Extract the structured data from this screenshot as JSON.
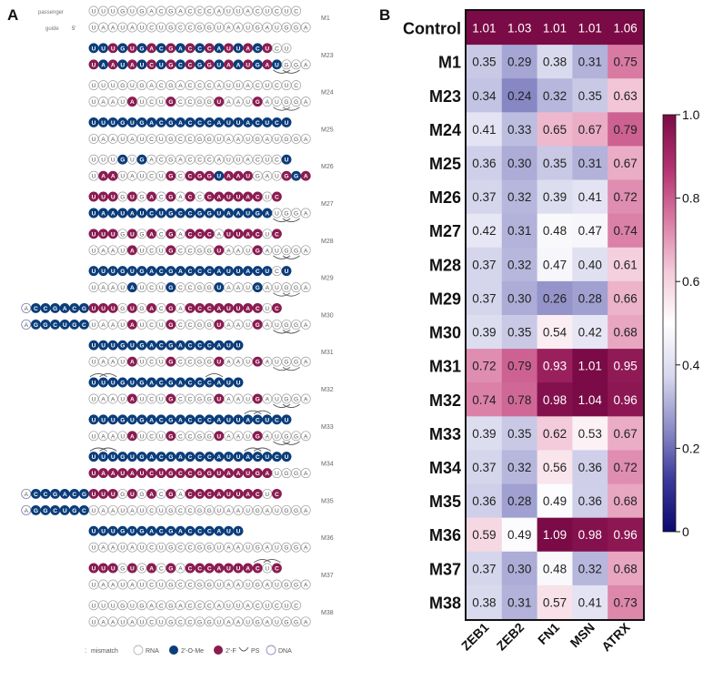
{
  "panel_a": {
    "label": "A",
    "passenger_label": "passenger",
    "guide_label": "guide",
    "five_prime": "5'",
    "colors": {
      "ome": "#0b3d7a",
      "fluoro": "#8a1c51",
      "rna_stroke": "#a0a0a0",
      "rna_text": "#555555",
      "ps": "#555555"
    },
    "passenger_seq": "UUUGUGACGACCCAUUACUCUC",
    "guide_seq": "UAAUAUCUGCCGGUAAUGAUGGA",
    "legend": {
      "mismatch": "mismatch",
      "rna": "RNA",
      "ome": "2'-O-Me",
      "fluoro": "2'-F",
      "ps": "PS",
      "dna": "DNA"
    },
    "constructs": [
      {
        "label": "M1",
        "p": "RRRRRRRRRRRRRRRRRRRRRR",
        "g": "RRRRRRRRRRRRRRRRRRRRRRR",
        "ps_p": [],
        "ps_g": []
      },
      {
        "label": "M23",
        "p": "OOFOFOFOFOFOFOFOFOFRR",
        "g": "FOFOFOFOFOFOFOFOFOFORRR",
        "ps_p": [],
        "ps_g": [
          19,
          20
        ]
      },
      {
        "label": "M24",
        "p": "RRRRRRRRRRRRRRRRRRRRRR",
        "g": "RRRRFRRRFRRRRFRRRFRRRRR",
        "ps_p": [],
        "ps_g": [
          19,
          20
        ]
      },
      {
        "label": "M25",
        "p": "OOOOOOOOOOOOOOOOOOOOO",
        "g": "RRRRRRRRRRRRRRRRRRRRRRR",
        "ps_p": [],
        "ps_g": []
      },
      {
        "label": "M26",
        "p": "RRRORORRRRRRRRRRRRRRO",
        "g": "RFFRRRRRFRFFFOFFFRRRFOF",
        "ps_p": [],
        "ps_g": []
      },
      {
        "label": "M27",
        "p": "FFFRFRFRFRFRFFFFFFRF",
        "g": "OOOOOOOOOOOOOOOOOOORRRR",
        "ps_p": [],
        "ps_g": [
          19,
          20
        ]
      },
      {
        "label": "M28",
        "p": "FFFRFRFRFRFFFRFFFFRF",
        "g": "RRRRFRRRFRRRRFRRRFRRRRR",
        "ps_p": [],
        "ps_g": [
          19,
          20
        ]
      },
      {
        "label": "M29",
        "p": "OOOOOOOOOOOOOOOOOOORO",
        "g": "RRRRORRRORRRRORRRORRRRR",
        "ps_p": [],
        "ps_g": [
          19,
          20
        ]
      },
      {
        "label": "M30",
        "p": "FFFRFRFRFRFFFFFFFFRF",
        "g": "RRRRFRRRFRRRRFRRRFRRRRR",
        "ps_p": [],
        "ps_g": [
          19,
          20
        ],
        "ext_p": "ACCGACG",
        "ext_g": "AGGCUGC"
      },
      {
        "label": "M31",
        "p": "OOOOOOOOOOOOOOOO",
        "g": "RRRRFRRRFRRRRFRRRFRRRRR",
        "ps_p": [],
        "ps_g": [
          19,
          20
        ]
      },
      {
        "label": "M32",
        "p": "OOOOOOOOOOOOOOOO",
        "g": "RRRRFRRRFRRRRFRRRFRRRRR",
        "ps_p": [
          0,
          1,
          12
        ],
        "ps_g": [
          19,
          20
        ]
      },
      {
        "label": "M33",
        "p": "OOOOOOOOOOOOOOOOOOOOO",
        "g": "RRRRFRRRFRRRRFRRRFRRRRR",
        "ps_p": [
          16,
          17
        ],
        "ps_g": [
          19,
          20
        ]
      },
      {
        "label": "M34",
        "p": "OOOOOOOOOOOOOOOOOOOOO",
        "g": "FFFFFFFFFFFFFFFFFFFRRRR",
        "ps_p": [
          0,
          1,
          16,
          17
        ],
        "ps_g": []
      },
      {
        "label": "M35",
        "p": "FFFRFRFRFRFFFFFFFFRF",
        "g": "RRRRRRRRRRRRRRRRRRRRRRR",
        "ps_p": [],
        "ps_g": [],
        "ext_p": "ACCGACG",
        "ext_g": "AGGCUGC"
      },
      {
        "label": "M36",
        "p": "OOOOOOOOOOOOOOOO",
        "g": "RRRRRRRRRRRRRRRRRRRRRRR",
        "ps_p": [],
        "ps_g": []
      },
      {
        "label": "M37",
        "p": "FFFRFRFRFRFFFFFFFFRF",
        "g": "RRRRRRRRRRRRRRRRRRRRRRR",
        "ps_p": [
          17,
          18
        ],
        "ps_g": []
      },
      {
        "label": "M38",
        "p": "RRRRRRRRRRRRRRRRRRRRRR",
        "g": "RRRRRRRRRRRRRRRRRRRRRRR",
        "ps_p": [],
        "ps_g": []
      }
    ]
  },
  "chart_data": {
    "type": "heatmap",
    "panel_label": "B",
    "rows": [
      "Control",
      "M1",
      "M23",
      "M24",
      "M25",
      "M26",
      "M27",
      "M28",
      "M29",
      "M30",
      "M31",
      "M32",
      "M33",
      "M34",
      "M35",
      "M36",
      "M37",
      "M38"
    ],
    "columns": [
      "ZEB1",
      "ZEB2",
      "FN1",
      "MSN",
      "ATRX"
    ],
    "values": [
      [
        1.01,
        1.03,
        1.01,
        1.01,
        1.06
      ],
      [
        0.35,
        0.29,
        0.38,
        0.31,
        0.75
      ],
      [
        0.34,
        0.24,
        0.32,
        0.35,
        0.63
      ],
      [
        0.41,
        0.33,
        0.65,
        0.67,
        0.79
      ],
      [
        0.36,
        0.3,
        0.35,
        0.31,
        0.67
      ],
      [
        0.37,
        0.32,
        0.39,
        0.41,
        0.72
      ],
      [
        0.42,
        0.31,
        0.48,
        0.47,
        0.74
      ],
      [
        0.37,
        0.32,
        0.47,
        0.4,
        0.61
      ],
      [
        0.37,
        0.3,
        0.26,
        0.28,
        0.66
      ],
      [
        0.39,
        0.35,
        0.54,
        0.42,
        0.68
      ],
      [
        0.72,
        0.79,
        0.93,
        1.01,
        0.95
      ],
      [
        0.74,
        0.78,
        0.98,
        1.04,
        0.96
      ],
      [
        0.39,
        0.35,
        0.62,
        0.53,
        0.67
      ],
      [
        0.37,
        0.32,
        0.56,
        0.36,
        0.72
      ],
      [
        0.36,
        0.28,
        0.49,
        0.36,
        0.68
      ],
      [
        0.59,
        0.49,
        1.09,
        0.98,
        0.96
      ],
      [
        0.37,
        0.3,
        0.48,
        0.32,
        0.68
      ],
      [
        0.38,
        0.31,
        0.57,
        0.41,
        0.73
      ]
    ],
    "colorbar": {
      "min": 0,
      "max": 1.0,
      "ticks": [
        "0",
        "0.2",
        "0.4",
        "0.6",
        "0.8",
        "1.0"
      ],
      "colormap": [
        "#0a0a6e",
        "#3a3a9c",
        "#8e8ec8",
        "#d8d8ee",
        "#ffffff",
        "#f3c9d8",
        "#d97aa3",
        "#b2306f",
        "#7a0b46"
      ]
    }
  }
}
